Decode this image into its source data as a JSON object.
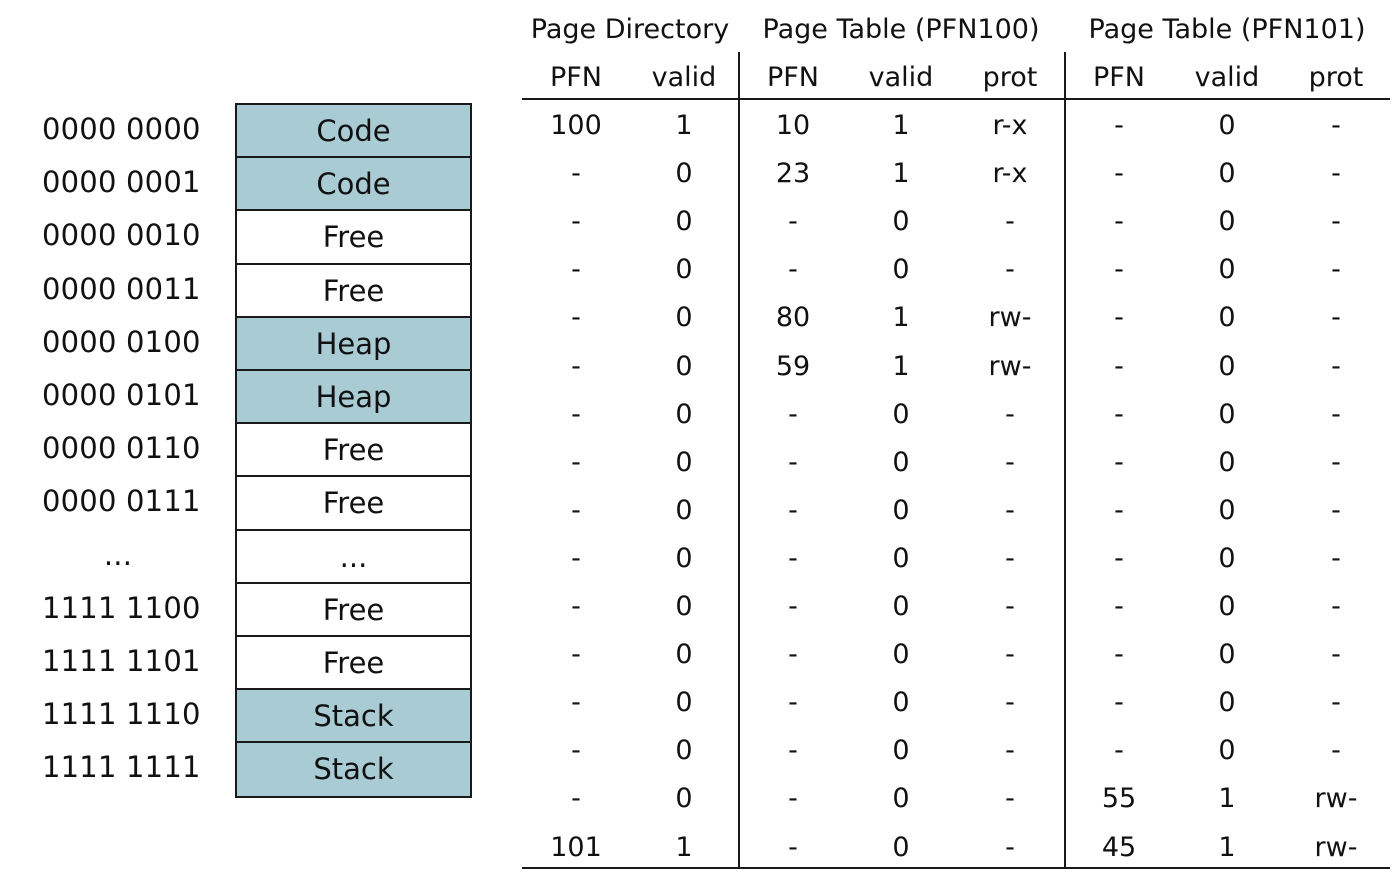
{
  "addresses": [
    "0000 0000",
    "0000 0001",
    "0000 0010",
    "0000 0011",
    "0000 0100",
    "0000 0101",
    "0000 0110",
    "0000 0111",
    "...",
    "1111 1100",
    "1111 1101",
    "1111 1110",
    "1111 1111"
  ],
  "memory_blocks": [
    {
      "label": "Code",
      "shaded": true
    },
    {
      "label": "Code",
      "shaded": true
    },
    {
      "label": "Free",
      "shaded": false
    },
    {
      "label": "Free",
      "shaded": false
    },
    {
      "label": "Heap",
      "shaded": true
    },
    {
      "label": "Heap",
      "shaded": true
    },
    {
      "label": "Free",
      "shaded": false
    },
    {
      "label": "Free",
      "shaded": false
    },
    {
      "label": "...",
      "shaded": false
    },
    {
      "label": "Free",
      "shaded": false
    },
    {
      "label": "Free",
      "shaded": false
    },
    {
      "label": "Stack",
      "shaded": true
    },
    {
      "label": "Stack",
      "shaded": true
    }
  ],
  "colors": {
    "shaded": "#a9cbd4",
    "plain": "#ffffff",
    "line": "#1a1a1a"
  },
  "tables": {
    "page_directory": {
      "title": "Page Directory",
      "columns": [
        "PFN",
        "valid"
      ]
    },
    "page_table_100": {
      "title": "Page Table (PFN100)",
      "columns": [
        "PFN",
        "valid",
        "prot"
      ]
    },
    "page_table_101": {
      "title": "Page Table (PFN101)",
      "columns": [
        "PFN",
        "valid",
        "prot"
      ]
    }
  },
  "rows": [
    [
      "100",
      "1",
      "10",
      "1",
      "r-x",
      "-",
      "0",
      "-"
    ],
    [
      "-",
      "0",
      "23",
      "1",
      "r-x",
      "-",
      "0",
      "-"
    ],
    [
      "-",
      "0",
      "-",
      "0",
      "-",
      "-",
      "0",
      "-"
    ],
    [
      "-",
      "0",
      "-",
      "0",
      "-",
      "-",
      "0",
      "-"
    ],
    [
      "-",
      "0",
      "80",
      "1",
      "rw-",
      "-",
      "0",
      "-"
    ],
    [
      "-",
      "0",
      "59",
      "1",
      "rw-",
      "-",
      "0",
      "-"
    ],
    [
      "-",
      "0",
      "-",
      "0",
      "-",
      "-",
      "0",
      "-"
    ],
    [
      "-",
      "0",
      "-",
      "0",
      "-",
      "-",
      "0",
      "-"
    ],
    [
      "-",
      "0",
      "-",
      "0",
      "-",
      "-",
      "0",
      "-"
    ],
    [
      "-",
      "0",
      "-",
      "0",
      "-",
      "-",
      "0",
      "-"
    ],
    [
      "-",
      "0",
      "-",
      "0",
      "-",
      "-",
      "0",
      "-"
    ],
    [
      "-",
      "0",
      "-",
      "0",
      "-",
      "-",
      "0",
      "-"
    ],
    [
      "-",
      "0",
      "-",
      "0",
      "-",
      "-",
      "0",
      "-"
    ],
    [
      "-",
      "0",
      "-",
      "0",
      "-",
      "-",
      "0",
      "-"
    ],
    [
      "-",
      "0",
      "-",
      "0",
      "-",
      "55",
      "1",
      "rw-"
    ],
    [
      "101",
      "1",
      "-",
      "0",
      "-",
      "45",
      "1",
      "rw-"
    ]
  ]
}
